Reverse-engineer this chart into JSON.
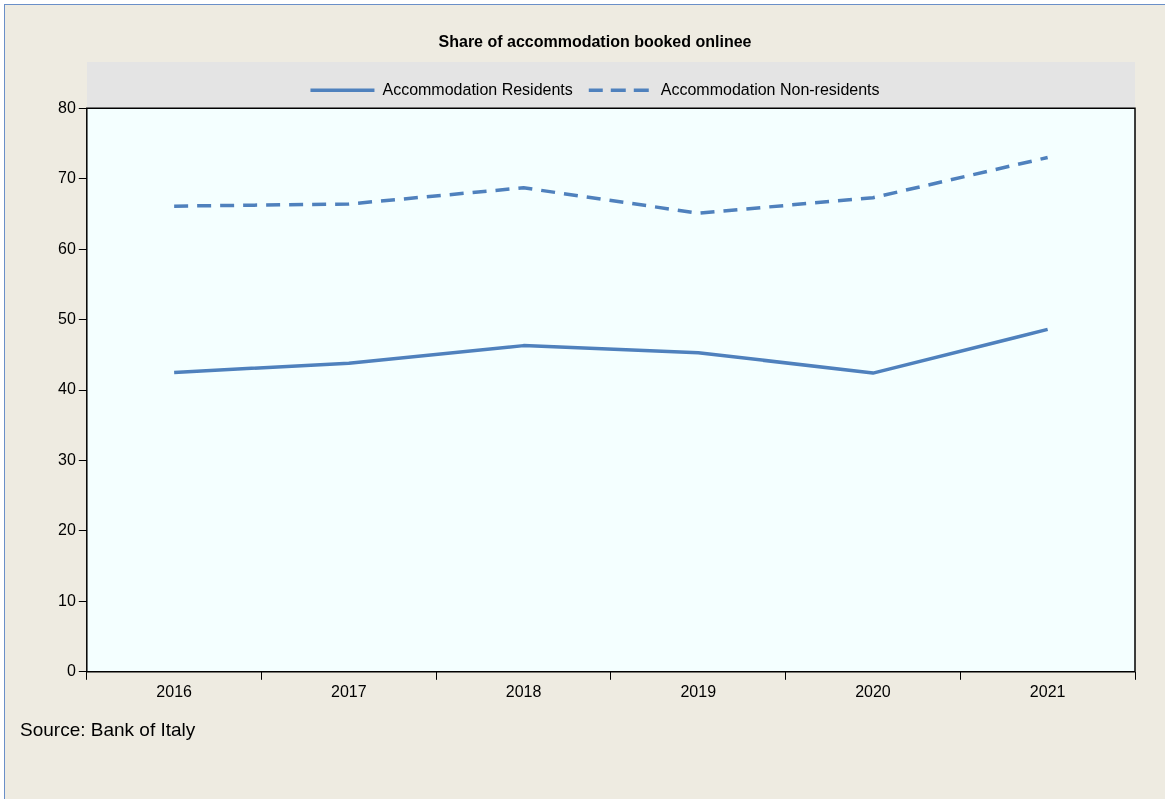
{
  "chart_data": {
    "type": "line",
    "title": "Share of accommodation booked onlinee",
    "categories": [
      "2016",
      "2017",
      "2018",
      "2019",
      "2020",
      "2021"
    ],
    "series": [
      {
        "name": "Accommodation Residents",
        "color": "#4f81bd",
        "line_style": "solid",
        "values": [
          42.5,
          43.8,
          46.3,
          45.3,
          42.4,
          48.6
        ]
      },
      {
        "name": "Accommodation Non-residents",
        "color": "#4f81bd",
        "line_style": "dashed",
        "values": [
          66.1,
          66.4,
          68.7,
          65.1,
          67.3,
          73.0
        ]
      }
    ],
    "ylim": [
      0,
      80
    ],
    "yticks": [
      0,
      10,
      20,
      30,
      40,
      50,
      60,
      70,
      80
    ],
    "grid": false,
    "legend": "top",
    "marker": "none",
    "annotations": [
      "Source: Bank of Italy"
    ]
  }
}
